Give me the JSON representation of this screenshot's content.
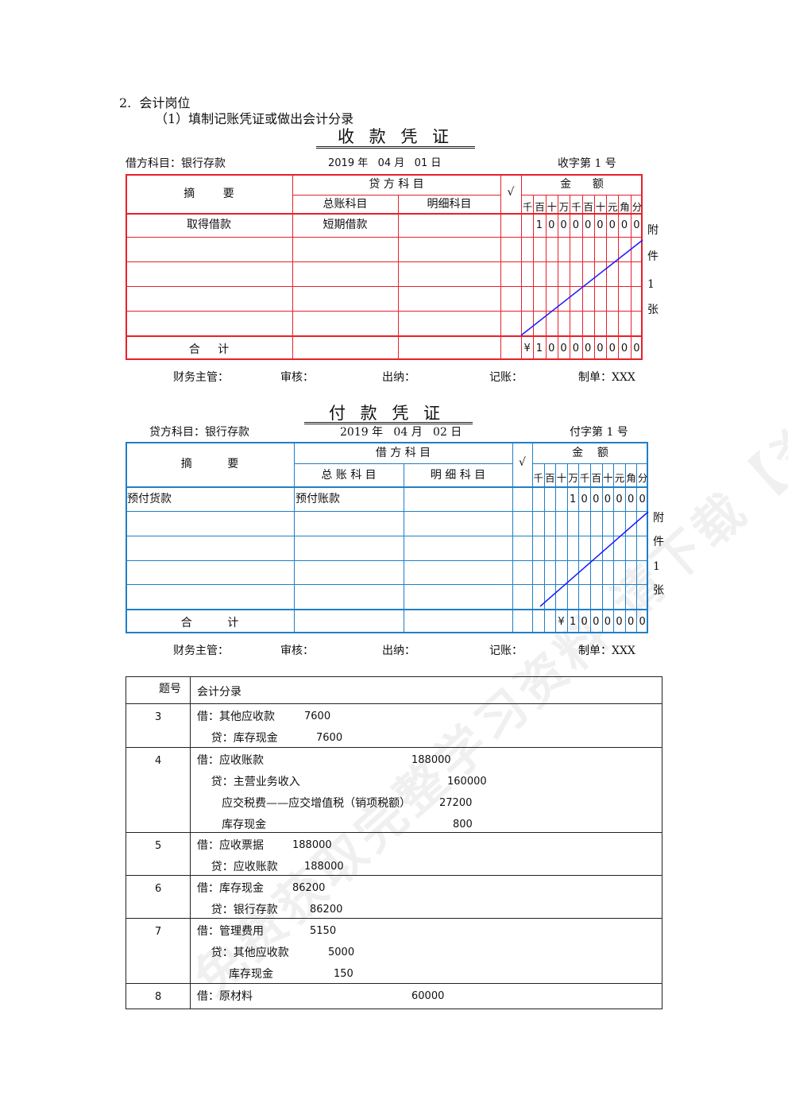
{
  "section": {
    "heading": "2.  会计岗位",
    "subheading": "（1）填制记账凭证或做出会计分录"
  },
  "receipt": {
    "title": "收 款 凭 证",
    "account_label": "借方科目：银行存款",
    "date": "2019 年   04 月   01 日",
    "number": "收字第 1 号",
    "headers": {
      "summary": "摘        要",
      "group": "贷 方 科 目",
      "general": "总账科目",
      "detail": "明细科目",
      "check": "√",
      "amount": "金      额"
    },
    "digit_units": [
      "千",
      "百",
      "十",
      "万",
      "千",
      "百",
      "十",
      "元",
      "角",
      "分"
    ],
    "row": {
      "summary": "取得借款",
      "general": "短期借款",
      "amount": [
        "",
        "1",
        "0",
        "0",
        "0",
        "0",
        "0",
        "0",
        "0",
        "0"
      ]
    },
    "total": {
      "label": "合     计",
      "amount": [
        "¥",
        "1",
        "0",
        "0",
        "0",
        "0",
        "0",
        "0",
        "0",
        "0"
      ]
    },
    "attachment": [
      "附",
      "件",
      "1",
      "张"
    ],
    "color": "#e8202a"
  },
  "receipt_footer": {
    "supervisor": "财务主管：",
    "review": "审核：",
    "cashier": "出纳：",
    "bookkeeper": "记账：",
    "preparer": "制单：XXX"
  },
  "payment": {
    "title": "付 款 凭 证",
    "account_label": "贷方科目：银行存款",
    "date": "2019 年   04 月   02 日",
    "number": "付字第 1 号",
    "headers": {
      "summary": "摘          要",
      "group": "借 方 科 目",
      "general": "总 账 科 目",
      "detail": "明 细 科 目",
      "check": "√",
      "amount": "金    额"
    },
    "digit_units": [
      "千",
      "百",
      "十",
      "万",
      "千",
      "百",
      "十",
      "元",
      "角",
      "分"
    ],
    "row": {
      "summary": "预付货款",
      "general": "预付账款",
      "amount": [
        "",
        "",
        "",
        "1",
        "0",
        "0",
        "0",
        "0",
        "0",
        "0"
      ]
    },
    "total": {
      "label": "合          计",
      "amount": [
        "",
        "",
        "¥",
        "1",
        "0",
        "0",
        "0",
        "0",
        "0",
        "0"
      ]
    },
    "attachment": [
      "附",
      "件",
      "1",
      "张"
    ],
    "color": "#1f7fc8"
  },
  "payment_footer": {
    "supervisor": "财务主管：",
    "review": "审核：",
    "cashier": "出纳：",
    "bookkeeper": "记账：",
    "preparer": "制单：XXX"
  },
  "journal": {
    "headers": {
      "no": "题号",
      "entry": "会计分录"
    },
    "rows": [
      {
        "no": "3",
        "lines": [
          [
            "借：其他应收款",
            "7600"
          ],
          [
            "    贷：库存现金",
            "7600"
          ]
        ]
      },
      {
        "no": "4",
        "lines": [
          [
            "借：应收账款",
            "188000"
          ],
          [
            "    贷：主营业务收入",
            "160000"
          ],
          [
            "       应交税费——应交增值税（销项税额）",
            "27200"
          ],
          [
            "       库存现金",
            "800"
          ]
        ]
      },
      {
        "no": "5",
        "lines": [
          [
            "借：应收票据",
            "188000"
          ],
          [
            "    贷：应收账款",
            "188000"
          ]
        ]
      },
      {
        "no": "6",
        "lines": [
          [
            "借：库存现金",
            "86200"
          ],
          [
            "    贷：银行存款",
            "86200"
          ]
        ]
      },
      {
        "no": "7",
        "lines": [
          [
            "借：管理费用",
            "5150"
          ],
          [
            "    贷：其他应收款",
            "5000"
          ],
          [
            "         库存现金",
            "150"
          ]
        ]
      },
      {
        "no": "8",
        "lines": [
          [
            "借：原材料",
            "60000"
          ]
        ]
      }
    ]
  },
  "watermark": "免费获取完整学习资料 请下载【资小料】APP"
}
